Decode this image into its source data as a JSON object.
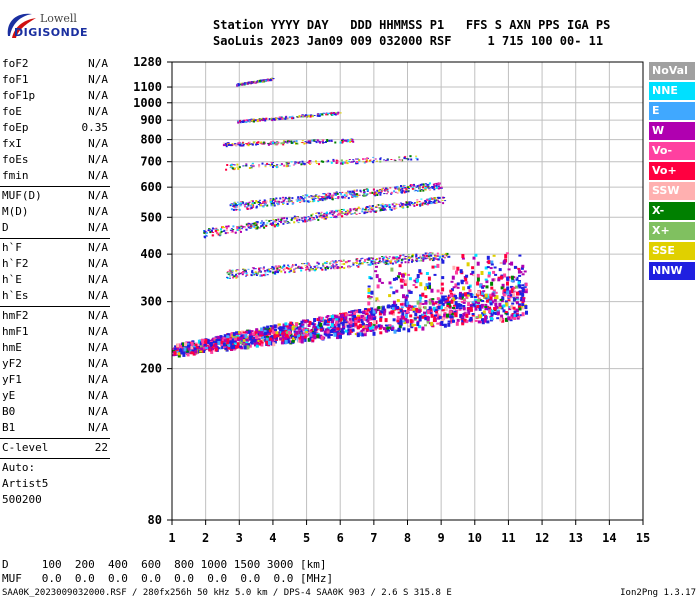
{
  "logo": {
    "top": "Lowell",
    "bottom": "DIGISONDE"
  },
  "header": {
    "line1": "Station YYYY DAY   DDD HHMMSS P1   FFS S AXN PPS IGA PS",
    "line2": "SaoLuis 2023 Jan09 009 032000 RSF     1 715 100 00- 11"
  },
  "params_group1": [
    {
      "name": "foF2",
      "value": "N/A"
    },
    {
      "name": "foF1",
      "value": "N/A"
    },
    {
      "name": "foF1p",
      "value": "N/A"
    },
    {
      "name": "foE",
      "value": "N/A"
    },
    {
      "name": "foEp",
      "value": "0.35"
    },
    {
      "name": "fxI",
      "value": "N/A"
    },
    {
      "name": "foEs",
      "value": "N/A"
    },
    {
      "name": "fmin",
      "value": "N/A"
    }
  ],
  "params_group2": [
    {
      "name": "MUF(D)",
      "value": "N/A"
    },
    {
      "name": "M(D)",
      "value": "N/A"
    },
    {
      "name": "D",
      "value": "N/A"
    }
  ],
  "params_group3": [
    {
      "name": "h`F",
      "value": "N/A"
    },
    {
      "name": "h`F2",
      "value": "N/A"
    },
    {
      "name": "h`E",
      "value": "N/A"
    },
    {
      "name": "h`Es",
      "value": "N/A"
    }
  ],
  "params_group4": [
    {
      "name": "hmF2",
      "value": "N/A"
    },
    {
      "name": "hmF1",
      "value": "N/A"
    },
    {
      "name": "hmE",
      "value": "N/A"
    },
    {
      "name": "yF2",
      "value": "N/A"
    },
    {
      "name": "yF1",
      "value": "N/A"
    },
    {
      "name": "yE",
      "value": "N/A"
    },
    {
      "name": "B0",
      "value": "N/A"
    },
    {
      "name": "B1",
      "value": "N/A"
    }
  ],
  "clevel": {
    "name": "C-level",
    "value": "22"
  },
  "scaling": {
    "line1": "Auto:",
    "line2": "Artist5",
    "line3": "500200"
  },
  "legend": [
    {
      "label": "NoVal",
      "color": "#a0a0a0"
    },
    {
      "label": "NNE",
      "color": "#00e0ff"
    },
    {
      "label": "E",
      "color": "#40a8ff"
    },
    {
      "label": "W",
      "color": "#b000b0"
    },
    {
      "label": "Vo-",
      "color": "#ff40a0"
    },
    {
      "label": "Vo+",
      "color": "#ff0040"
    },
    {
      "label": "SSW",
      "color": "#ffb0b0"
    },
    {
      "label": "X-",
      "color": "#008000"
    },
    {
      "label": "X+",
      "color": "#80c060"
    },
    {
      "label": "SSE",
      "color": "#e0d000"
    },
    {
      "label": "NNW",
      "color": "#2020e0"
    }
  ],
  "distance_table": {
    "row1": "D     100  200  400  600  800 1000 1500 3000 [km]",
    "row2": "MUF   0.0  0.0  0.0  0.0  0.0  0.0  0.0  0.0 [MHz]"
  },
  "footer": "SAA0K_2023009032000.RSF / 280fx256h 50 kHz 5.0 km / DPS-4 SAA0K 903 / 2.6 S 315.8 E",
  "version": "Ion2Png 1.3.17",
  "chart_data": {
    "type": "scatter",
    "xlim": [
      1,
      15
    ],
    "ylim": [
      80,
      1280
    ],
    "x_ticks": [
      1,
      2,
      3,
      4,
      5,
      6,
      7,
      8,
      9,
      10,
      11,
      12,
      13,
      14,
      15
    ],
    "y_ticks": [
      80,
      200,
      300,
      400,
      500,
      600,
      700,
      800,
      900,
      1000,
      1100,
      1280
    ],
    "y_scale": "log",
    "grid": true,
    "legend_position": "right",
    "traces": [
      {
        "name": "echo-band-1",
        "x_range": [
          1.0,
          11.5
        ],
        "y_start": 225,
        "y_end": 305,
        "thickness": 35
      },
      {
        "name": "echo-band-2",
        "x_range": [
          2.6,
          9.2
        ],
        "y_start": 355,
        "y_end": 400,
        "thickness": 18
      },
      {
        "name": "echo-band-3",
        "x_range": [
          1.9,
          9.1
        ],
        "y_start": 455,
        "y_end": 560,
        "thickness": 22
      },
      {
        "name": "echo-band-4",
        "x_range": [
          2.7,
          9.0
        ],
        "y_start": 535,
        "y_end": 610,
        "thickness": 25
      },
      {
        "name": "echo-band-5",
        "x_range": [
          2.5,
          8.3
        ],
        "y_start": 680,
        "y_end": 720,
        "thickness": 20
      },
      {
        "name": "echo-band-6",
        "x_range": [
          2.5,
          6.4
        ],
        "y_start": 780,
        "y_end": 800,
        "thickness": 15
      },
      {
        "name": "echo-band-7",
        "x_range": [
          2.9,
          6.0
        ],
        "y_start": 895,
        "y_end": 945,
        "thickness": 12
      },
      {
        "name": "echo-band-8",
        "x_range": [
          2.9,
          4.0
        ],
        "y_start": 1120,
        "y_end": 1160,
        "thickness": 10
      }
    ]
  }
}
